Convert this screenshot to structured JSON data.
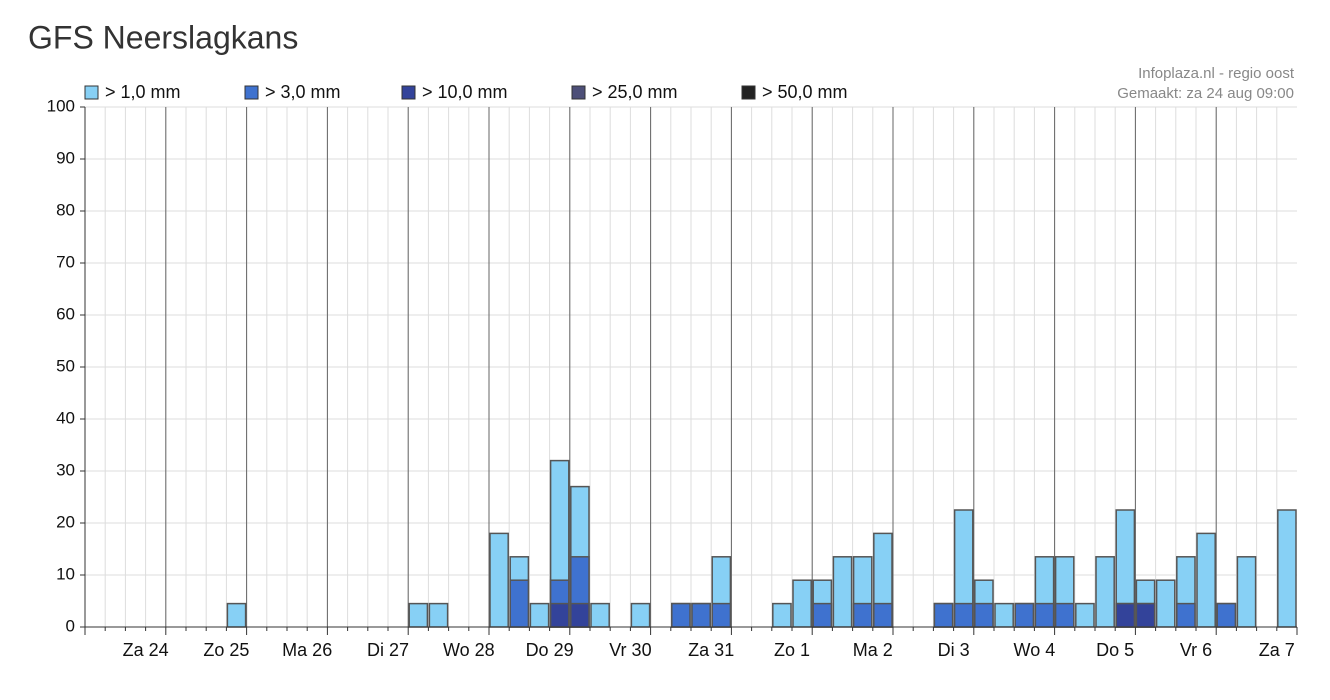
{
  "chart_data": {
    "type": "bar",
    "title": "GFS Neerslagkans",
    "source": "Infoplaza.nl - regio oost",
    "created": "Gemaakt: za 24 aug 09:00",
    "ylim": [
      0,
      100
    ],
    "yticks": [
      0,
      10,
      20,
      30,
      40,
      50,
      60,
      70,
      80,
      90,
      100
    ],
    "grid": true,
    "day_labels": [
      "Za 24",
      "Zo 25",
      "Ma 26",
      "Di 27",
      "Wo 28",
      "Do 29",
      "Vr 30",
      "Za 31",
      "Zo 1",
      "Ma 2",
      "Di 3",
      "Wo 4",
      "Do 5",
      "Vr 6",
      "Za 7"
    ],
    "series": [
      {
        "name": "> 1,0 mm",
        "color": "#87d0f5",
        "values": [
          0,
          0,
          0,
          0,
          0,
          0,
          0,
          4.5,
          0,
          0,
          0,
          0,
          0,
          0,
          0,
          0,
          4.5,
          4.5,
          0,
          0,
          18,
          13.5,
          4.5,
          32,
          27,
          4.5,
          0,
          4.5,
          0,
          4.5,
          4.5,
          13.5,
          0,
          0,
          4.5,
          9,
          9,
          13.5,
          13.5,
          18,
          0,
          0,
          4.5,
          22.5,
          9,
          4.5,
          4.5,
          13.5,
          13.5,
          4.5,
          13.5,
          22.5,
          9,
          9,
          13.5,
          18,
          4.5,
          13.5,
          0,
          22.5
        ]
      },
      {
        "name": "> 3,0 mm",
        "color": "#3f72cf",
        "values": [
          0,
          0,
          0,
          0,
          0,
          0,
          0,
          0,
          0,
          0,
          0,
          0,
          0,
          0,
          0,
          0,
          0,
          0,
          0,
          0,
          0,
          9,
          0,
          9,
          13.5,
          0,
          0,
          0,
          0,
          4.5,
          4.5,
          4.5,
          0,
          0,
          0,
          0,
          4.5,
          0,
          4.5,
          4.5,
          0,
          0,
          4.5,
          4.5,
          4.5,
          0,
          4.5,
          4.5,
          4.5,
          0,
          0,
          4.5,
          4.5,
          0,
          4.5,
          0,
          4.5,
          0,
          0,
          0
        ]
      },
      {
        "name": "> 10,0 mm",
        "color": "#33439a",
        "values": [
          0,
          0,
          0,
          0,
          0,
          0,
          0,
          0,
          0,
          0,
          0,
          0,
          0,
          0,
          0,
          0,
          0,
          0,
          0,
          0,
          0,
          0,
          0,
          4.5,
          4.5,
          0,
          0,
          0,
          0,
          0,
          0,
          0,
          0,
          0,
          0,
          0,
          0,
          0,
          0,
          0,
          0,
          0,
          0,
          0,
          0,
          0,
          0,
          0,
          0,
          0,
          0,
          4.5,
          4.5,
          0,
          0,
          0,
          0,
          0,
          0,
          0
        ]
      },
      {
        "name": "> 25,0 mm",
        "color": "#4d4f78",
        "values": [
          0,
          0,
          0,
          0,
          0,
          0,
          0,
          0,
          0,
          0,
          0,
          0,
          0,
          0,
          0,
          0,
          0,
          0,
          0,
          0,
          0,
          0,
          0,
          0,
          0,
          0,
          0,
          0,
          0,
          0,
          0,
          0,
          0,
          0,
          0,
          0,
          0,
          0,
          0,
          0,
          0,
          0,
          0,
          0,
          0,
          0,
          0,
          0,
          0,
          0,
          0,
          0,
          0,
          0,
          0,
          0,
          0,
          0,
          0,
          0
        ]
      },
      {
        "name": "> 50,0 mm",
        "color": "#222222",
        "values": [
          0,
          0,
          0,
          0,
          0,
          0,
          0,
          0,
          0,
          0,
          0,
          0,
          0,
          0,
          0,
          0,
          0,
          0,
          0,
          0,
          0,
          0,
          0,
          0,
          0,
          0,
          0,
          0,
          0,
          0,
          0,
          0,
          0,
          0,
          0,
          0,
          0,
          0,
          0,
          0,
          0,
          0,
          0,
          0,
          0,
          0,
          0,
          0,
          0,
          0,
          0,
          0,
          0,
          0,
          0,
          0,
          0,
          0,
          0,
          0
        ]
      }
    ]
  }
}
